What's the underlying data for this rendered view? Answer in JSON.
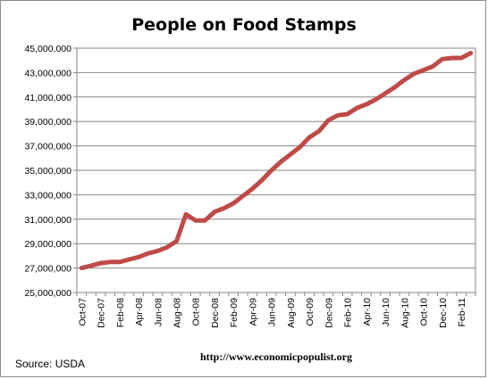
{
  "chart_data": {
    "type": "line",
    "title": "People on Food Stamps",
    "xlabel": "",
    "ylabel": "",
    "ylim": [
      25000000,
      45000000
    ],
    "yticks": [
      "25,000,000",
      "27,000,000",
      "29,000,000",
      "31,000,000",
      "33,000,000",
      "35,000,000",
      "37,000,000",
      "39,000,000",
      "41,000,000",
      "43,000,000",
      "45,000,000"
    ],
    "xtick_labels": [
      "Oct-07",
      "Dec-07",
      "Feb-08",
      "Apr-08",
      "Jun-08",
      "Aug-08",
      "Oct-08",
      "Dec-08",
      "Feb-09",
      "Apr-09",
      "Jun-09",
      "Aug-09",
      "Oct-09",
      "Dec-09",
      "Feb-10",
      "Apr-10",
      "Jun-10",
      "Aug-10",
      "Oct-10",
      "Dec-10",
      "Feb-11"
    ],
    "categories": [
      "Oct-07",
      "Nov-07",
      "Dec-07",
      "Jan-08",
      "Feb-08",
      "Mar-08",
      "Apr-08",
      "May-08",
      "Jun-08",
      "Jul-08",
      "Aug-08",
      "Sep-08",
      "Oct-08",
      "Nov-08",
      "Dec-08",
      "Jan-09",
      "Feb-09",
      "Mar-09",
      "Apr-09",
      "May-09",
      "Jun-09",
      "Jul-09",
      "Aug-09",
      "Sep-09",
      "Oct-09",
      "Nov-09",
      "Dec-09",
      "Jan-10",
      "Feb-10",
      "Mar-10",
      "Apr-10",
      "May-10",
      "Jun-10",
      "Jul-10",
      "Aug-10",
      "Sep-10",
      "Oct-10",
      "Nov-10",
      "Dec-10",
      "Jan-11",
      "Feb-11",
      "Mar-11"
    ],
    "series": [
      {
        "color": "#be4b48",
        "values": [
          27000000,
          27200000,
          27400000,
          27500000,
          27500000,
          27700000,
          27900000,
          28200000,
          28400000,
          28700000,
          29200000,
          31400000,
          30900000,
          30900000,
          31600000,
          31900000,
          32300000,
          32900000,
          33500000,
          34200000,
          35000000,
          35700000,
          36300000,
          36900000,
          37700000,
          38200000,
          39100000,
          39500000,
          39600000,
          40100000,
          40400000,
          40800000,
          41300000,
          41800000,
          42400000,
          42900000,
          43200000,
          43500000,
          44100000,
          44200000,
          44200000,
          44600000
        ]
      }
    ],
    "grid": true,
    "legend": "none"
  },
  "source_text": "Source:  USDA",
  "url_text": "http://www.economicpopulist.org"
}
